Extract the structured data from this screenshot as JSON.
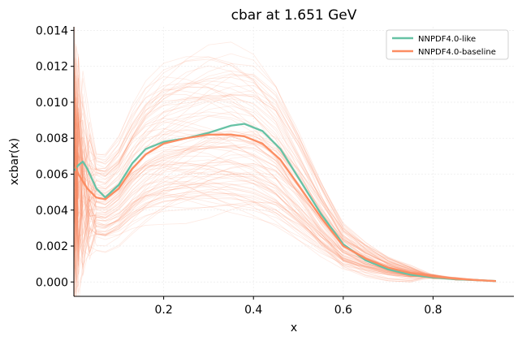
{
  "chart_data": {
    "type": "line",
    "title": "cbar at 1.651 GeV",
    "xlabel": "x",
    "ylabel": "xcbar(x)",
    "xlim": [
      0.0,
      0.98
    ],
    "ylim": [
      -0.0008,
      0.0142
    ],
    "x_ticks": [
      0.2,
      0.4,
      0.6,
      0.8
    ],
    "x_tick_labels": [
      "0.2",
      "0.4",
      "0.6",
      "0.8"
    ],
    "y_ticks": [
      0.0,
      0.002,
      0.004,
      0.006,
      0.008,
      0.01,
      0.012,
      0.014
    ],
    "y_tick_labels": [
      "0.000",
      "0.002",
      "0.004",
      "0.006",
      "0.008",
      "0.010",
      "0.012",
      "0.014"
    ],
    "grid": true,
    "legend_position": "top-right",
    "series": [
      {
        "name": "NNPDF4.0-like",
        "color": "#66c2a5",
        "x": [
          0.001,
          0.01,
          0.02,
          0.03,
          0.05,
          0.07,
          0.1,
          0.13,
          0.16,
          0.2,
          0.25,
          0.3,
          0.35,
          0.38,
          0.42,
          0.46,
          0.5,
          0.55,
          0.6,
          0.65,
          0.7,
          0.75,
          0.8,
          0.85,
          0.9,
          0.94
        ],
        "y": [
          0.0062,
          0.0065,
          0.0067,
          0.0063,
          0.0052,
          0.0047,
          0.0054,
          0.0066,
          0.0074,
          0.0078,
          0.008,
          0.0083,
          0.0087,
          0.0088,
          0.0084,
          0.0074,
          0.0058,
          0.0038,
          0.0021,
          0.0012,
          0.0007,
          0.0004,
          0.00025,
          0.00015,
          0.0001,
          5e-05
        ]
      },
      {
        "name": "NNPDF4.0-baseline",
        "color": "#fc8d62",
        "x": [
          0.001,
          0.01,
          0.02,
          0.03,
          0.05,
          0.07,
          0.1,
          0.13,
          0.16,
          0.2,
          0.25,
          0.3,
          0.35,
          0.38,
          0.42,
          0.46,
          0.5,
          0.55,
          0.6,
          0.65,
          0.7,
          0.75,
          0.8,
          0.85,
          0.9,
          0.94
        ],
        "y": [
          0.0066,
          0.006,
          0.0056,
          0.0052,
          0.0047,
          0.0046,
          0.0052,
          0.0063,
          0.0071,
          0.0077,
          0.008,
          0.0082,
          0.0082,
          0.0081,
          0.0077,
          0.0068,
          0.0054,
          0.0036,
          0.002,
          0.0013,
          0.0008,
          0.0005,
          0.0003,
          0.00018,
          0.0001,
          5e-05
        ]
      }
    ],
    "replicas": {
      "color": "#fc8d62",
      "count": 100,
      "x": [
        0.001,
        0.005,
        0.01,
        0.02,
        0.035,
        0.05,
        0.07,
        0.1,
        0.13,
        0.16,
        0.2,
        0.25,
        0.3,
        0.35,
        0.4,
        0.45,
        0.5,
        0.55,
        0.6,
        0.65,
        0.7,
        0.75,
        0.8,
        0.85,
        0.9,
        0.94
      ]
    }
  }
}
